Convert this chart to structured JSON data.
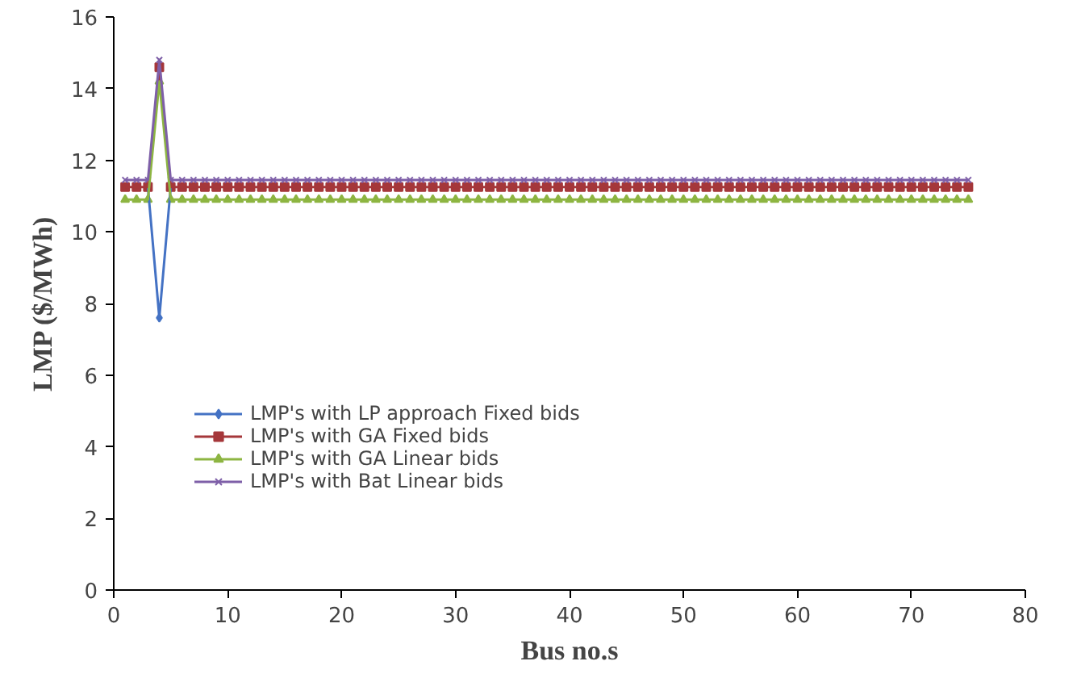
{
  "chart_data": {
    "type": "line",
    "xlabel": "Bus no.s",
    "ylabel": "LMP ($/MWh)",
    "x": [
      1,
      2,
      3,
      4,
      5,
      6,
      7,
      8,
      9,
      10,
      11,
      12,
      13,
      14,
      15,
      16,
      17,
      18,
      19,
      20,
      21,
      22,
      23,
      24,
      25,
      26,
      27,
      28,
      29,
      30,
      31,
      32,
      33,
      34,
      35,
      36,
      37,
      38,
      39,
      40,
      41,
      42,
      43,
      44,
      45,
      46,
      47,
      48,
      49,
      50,
      51,
      52,
      53,
      54,
      55,
      56,
      57,
      58,
      59,
      60,
      61,
      62,
      63,
      64,
      65,
      66,
      67,
      68,
      69,
      70,
      71,
      72,
      73,
      74,
      75
    ],
    "xlim": [
      0,
      80
    ],
    "xticks": [
      0,
      10,
      20,
      30,
      40,
      50,
      60,
      70,
      80
    ],
    "ylim": [
      0,
      16
    ],
    "yticks": [
      0,
      2,
      4,
      6,
      8,
      10,
      12,
      14,
      16
    ],
    "grid": false,
    "legend": "left",
    "series": [
      {
        "name": "LMP's with LP approach Fixed bids",
        "color": "#4472c4",
        "marker": "diamond",
        "values": [
          null,
          null,
          11.25,
          7.6,
          11.25,
          null,
          null,
          null,
          null,
          null,
          null,
          null,
          null,
          null,
          null,
          null,
          null,
          null,
          null,
          null,
          null,
          null,
          null,
          null,
          null,
          null,
          null,
          null,
          null,
          null,
          null,
          null,
          null,
          null,
          null,
          null,
          null,
          null,
          null,
          null,
          null,
          null,
          null,
          null,
          null,
          null,
          null,
          null,
          null,
          null,
          null,
          null,
          null,
          null,
          null,
          null,
          null,
          null,
          null,
          null,
          null,
          null,
          null,
          null,
          null,
          null,
          null,
          null,
          null,
          null,
          null,
          null,
          null,
          null,
          null
        ]
      },
      {
        "name": "LMP's with GA Fixed bids",
        "color": "#a5373a",
        "marker": "square",
        "values": [
          11.25,
          11.25,
          11.25,
          14.6,
          11.25,
          11.25,
          11.25,
          11.25,
          11.25,
          11.25,
          11.25,
          11.25,
          11.25,
          11.25,
          11.25,
          11.25,
          11.25,
          11.25,
          11.25,
          11.25,
          11.25,
          11.25,
          11.25,
          11.25,
          11.25,
          11.25,
          11.25,
          11.25,
          11.25,
          11.25,
          11.25,
          11.25,
          11.25,
          11.25,
          11.25,
          11.25,
          11.25,
          11.25,
          11.25,
          11.25,
          11.25,
          11.25,
          11.25,
          11.25,
          11.25,
          11.25,
          11.25,
          11.25,
          11.25,
          11.25,
          11.25,
          11.25,
          11.25,
          11.25,
          11.25,
          11.25,
          11.25,
          11.25,
          11.25,
          11.25,
          11.25,
          11.25,
          11.25,
          11.25,
          11.25,
          11.25,
          11.25,
          11.25,
          11.25,
          11.25,
          11.25,
          11.25,
          11.25,
          11.25,
          11.25
        ]
      },
      {
        "name": "LMP's with GA Linear bids",
        "color": "#8db542",
        "marker": "triangle",
        "values": [
          10.9,
          10.9,
          10.9,
          14.2,
          10.9,
          10.9,
          10.9,
          10.9,
          10.9,
          10.9,
          10.9,
          10.9,
          10.9,
          10.9,
          10.9,
          10.9,
          10.9,
          10.9,
          10.9,
          10.9,
          10.9,
          10.9,
          10.9,
          10.9,
          10.9,
          10.9,
          10.9,
          10.9,
          10.9,
          10.9,
          10.9,
          10.9,
          10.9,
          10.9,
          10.9,
          10.9,
          10.9,
          10.9,
          10.9,
          10.9,
          10.9,
          10.9,
          10.9,
          10.9,
          10.9,
          10.9,
          10.9,
          10.9,
          10.9,
          10.9,
          10.9,
          10.9,
          10.9,
          10.9,
          10.9,
          10.9,
          10.9,
          10.9,
          10.9,
          10.9,
          10.9,
          10.9,
          10.9,
          10.9,
          10.9,
          10.9,
          10.9,
          10.9,
          10.9,
          10.9,
          10.9,
          10.9,
          10.9,
          10.9,
          10.9
        ]
      },
      {
        "name": "LMP's with Bat Linear bids",
        "color": "#7e5fa8",
        "marker": "cross",
        "values": [
          11.45,
          11.45,
          11.45,
          14.8,
          11.45,
          11.45,
          11.45,
          11.45,
          11.45,
          11.45,
          11.45,
          11.45,
          11.45,
          11.45,
          11.45,
          11.45,
          11.45,
          11.45,
          11.45,
          11.45,
          11.45,
          11.45,
          11.45,
          11.45,
          11.45,
          11.45,
          11.45,
          11.45,
          11.45,
          11.45,
          11.45,
          11.45,
          11.45,
          11.45,
          11.45,
          11.45,
          11.45,
          11.45,
          11.45,
          11.45,
          11.45,
          11.45,
          11.45,
          11.45,
          11.45,
          11.45,
          11.45,
          11.45,
          11.45,
          11.45,
          11.45,
          11.45,
          11.45,
          11.45,
          11.45,
          11.45,
          11.45,
          11.45,
          11.45,
          11.45,
          11.45,
          11.45,
          11.45,
          11.45,
          11.45,
          11.45,
          11.45,
          11.45,
          11.45,
          11.45,
          11.45,
          11.45,
          11.45,
          11.45,
          11.45
        ]
      }
    ]
  }
}
